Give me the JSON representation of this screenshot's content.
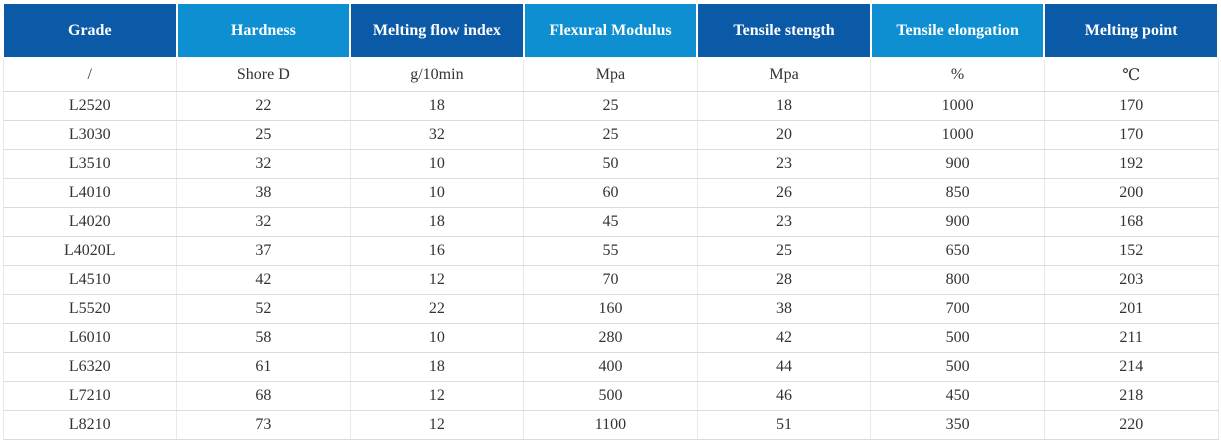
{
  "colors": {
    "header_dark": "#0b5aa7",
    "header_light": "#0d8fd2",
    "header_text": "#ffffff",
    "body_text": "#333333",
    "row_border": "#dcdcdc"
  },
  "table": {
    "columns": [
      {
        "label": "Grade",
        "unit": "/"
      },
      {
        "label": "Hardness",
        "unit": "Shore D"
      },
      {
        "label": "Melting flow index",
        "unit": "g/10min"
      },
      {
        "label": "Flexural Modulus",
        "unit": "Mpa"
      },
      {
        "label": "Tensile stength",
        "unit": "Mpa"
      },
      {
        "label": "Tensile elongation",
        "unit": "%"
      },
      {
        "label": "Melting point",
        "unit": "℃"
      }
    ],
    "rows": [
      [
        "L2520",
        "22",
        "18",
        "25",
        "18",
        "1000",
        "170"
      ],
      [
        "L3030",
        "25",
        "32",
        "25",
        "20",
        "1000",
        "170"
      ],
      [
        "L3510",
        "32",
        "10",
        "50",
        "23",
        "900",
        "192"
      ],
      [
        "L4010",
        "38",
        "10",
        "60",
        "26",
        "850",
        "200"
      ],
      [
        "L4020",
        "32",
        "18",
        "45",
        "23",
        "900",
        "168"
      ],
      [
        "L4020L",
        "37",
        "16",
        "55",
        "25",
        "650",
        "152"
      ],
      [
        "L4510",
        "42",
        "12",
        "70",
        "28",
        "800",
        "203"
      ],
      [
        "L5520",
        "52",
        "22",
        "160",
        "38",
        "700",
        "201"
      ],
      [
        "L6010",
        "58",
        "10",
        "280",
        "42",
        "500",
        "211"
      ],
      [
        "L6320",
        "61",
        "18",
        "400",
        "44",
        "500",
        "214"
      ],
      [
        "L7210",
        "68",
        "12",
        "500",
        "46",
        "450",
        "218"
      ],
      [
        "L8210",
        "73",
        "12",
        "1100",
        "51",
        "350",
        "220"
      ]
    ]
  },
  "chart_data": {
    "type": "table",
    "title": "",
    "columns": [
      "Grade",
      "Hardness",
      "Melting flow index",
      "Flexural Modulus",
      "Tensile stength",
      "Tensile elongation",
      "Melting point"
    ],
    "units": [
      "/",
      "Shore D",
      "g/10min",
      "Mpa",
      "Mpa",
      "%",
      "℃"
    ],
    "rows": [
      [
        "L2520",
        22,
        18,
        25,
        18,
        1000,
        170
      ],
      [
        "L3030",
        25,
        32,
        25,
        20,
        1000,
        170
      ],
      [
        "L3510",
        32,
        10,
        50,
        23,
        900,
        192
      ],
      [
        "L4010",
        38,
        10,
        60,
        26,
        850,
        200
      ],
      [
        "L4020",
        32,
        18,
        45,
        23,
        900,
        168
      ],
      [
        "L4020L",
        37,
        16,
        55,
        25,
        650,
        152
      ],
      [
        "L4510",
        42,
        12,
        70,
        28,
        800,
        203
      ],
      [
        "L5520",
        52,
        22,
        160,
        38,
        700,
        201
      ],
      [
        "L6010",
        58,
        10,
        280,
        42,
        500,
        211
      ],
      [
        "L6320",
        61,
        18,
        400,
        44,
        500,
        214
      ],
      [
        "L7210",
        68,
        12,
        500,
        46,
        450,
        218
      ],
      [
        "L8210",
        73,
        12,
        1100,
        51,
        350,
        220
      ]
    ]
  }
}
